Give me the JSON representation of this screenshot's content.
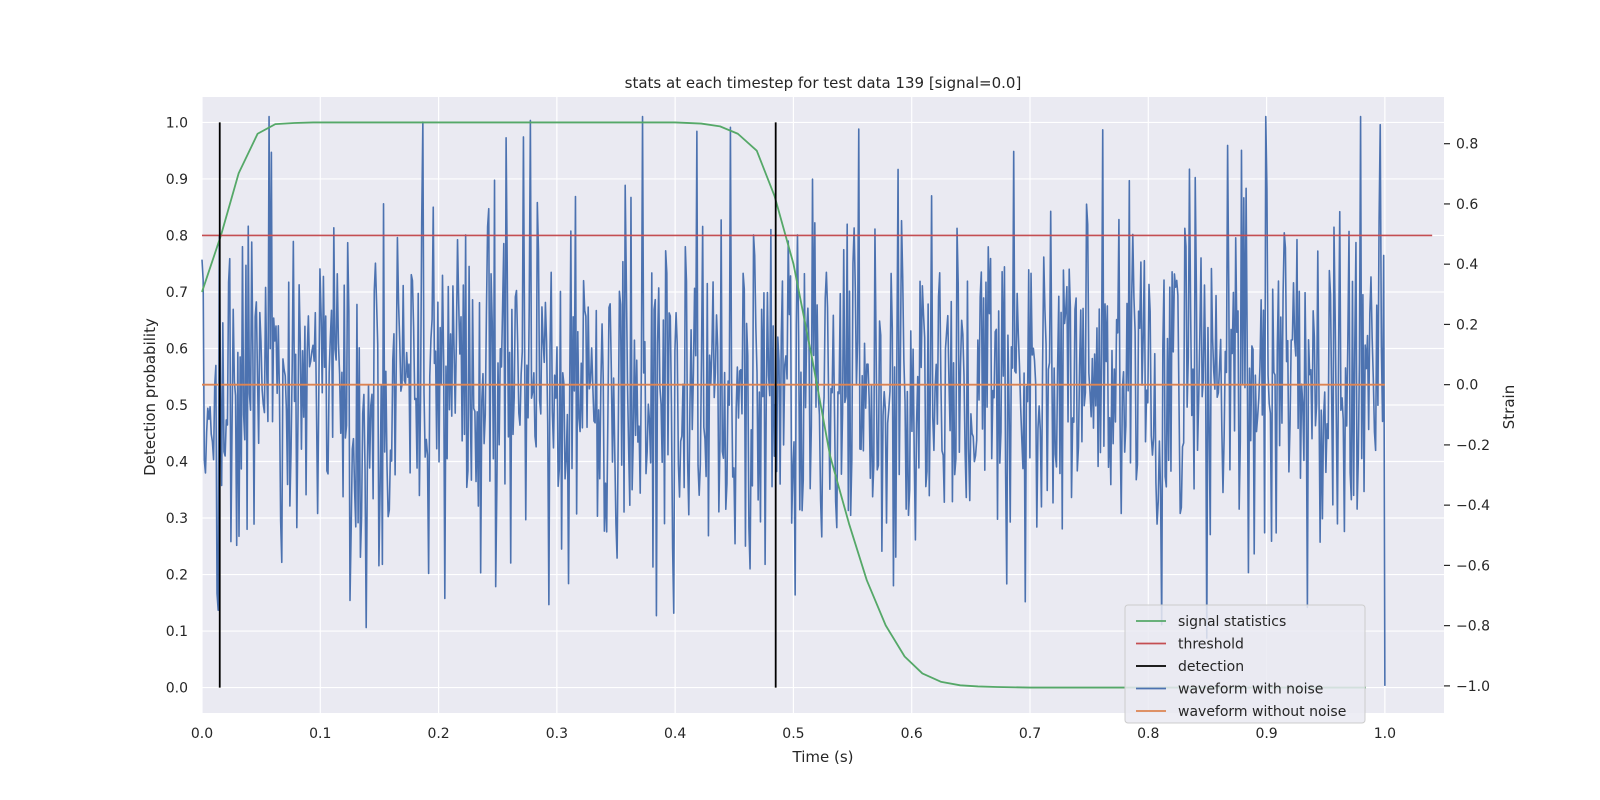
{
  "chart_data": {
    "type": "line",
    "title": "stats at each timestep for test data 139 [signal=0.0]",
    "xlabel": "Time (s)",
    "ylabel_left": "Detection probability",
    "ylabel_right": "Strain",
    "xlim": [
      0.0,
      1.05
    ],
    "ylim_left": [
      -0.045,
      1.045
    ],
    "ylim_right": [
      -1.09,
      0.955
    ],
    "x_ticks": [
      "0.0",
      "0.1",
      "0.2",
      "0.3",
      "0.4",
      "0.5",
      "0.6",
      "0.7",
      "0.8",
      "0.9",
      "1.0"
    ],
    "y_left_ticks": [
      "0.0",
      "0.1",
      "0.2",
      "0.3",
      "0.4",
      "0.5",
      "0.6",
      "0.7",
      "0.8",
      "0.9",
      "1.0"
    ],
    "y_right_ticks": [
      "−1.0",
      "−0.8",
      "−0.6",
      "−0.4",
      "−0.2",
      "0.0",
      "0.2",
      "0.4",
      "0.6",
      "0.8"
    ],
    "grid": true,
    "legend_position": "lower-right",
    "colors": {
      "background": "#eaeaf2",
      "grid": "#ffffff",
      "signal_statistics": "#55a868",
      "threshold": "#c44e52",
      "detection": "#000000",
      "waveform_with_noise": "#4c72b0",
      "waveform_without_noise": "#dd8452"
    },
    "legend": [
      "signal statistics",
      "threshold",
      "detection",
      "waveform with noise",
      "waveform without noise"
    ],
    "series": [
      {
        "name": "signal statistics",
        "axis": "left",
        "x": [
          0.0,
          0.016,
          0.031,
          0.047,
          0.062,
          0.078,
          0.094,
          0.109,
          0.125,
          0.2,
          0.3,
          0.4,
          0.422,
          0.438,
          0.453,
          0.469,
          0.484,
          0.5,
          0.516,
          0.531,
          0.547,
          0.562,
          0.578,
          0.594,
          0.609,
          0.625,
          0.641,
          0.656,
          0.672,
          0.7,
          0.8,
          0.9,
          0.984
        ],
        "y": [
          0.7,
          0.8,
          0.91,
          0.98,
          0.997,
          0.999,
          1.0,
          1.0,
          1.0,
          1.0,
          1.0,
          1.0,
          0.998,
          0.993,
          0.98,
          0.95,
          0.87,
          0.75,
          0.58,
          0.41,
          0.29,
          0.19,
          0.11,
          0.055,
          0.025,
          0.01,
          0.004,
          0.002,
          0.001,
          0.0,
          0.0,
          0.0,
          0.0
        ]
      },
      {
        "name": "threshold",
        "axis": "left",
        "x": [
          0.0,
          1.04
        ],
        "y": [
          0.8,
          0.8
        ]
      },
      {
        "name": "detection",
        "axis": "left",
        "x_events": [
          0.015,
          0.485
        ],
        "y_range": [
          0.0,
          1.0
        ]
      },
      {
        "name": "waveform with noise",
        "axis": "right",
        "x_range": [
          0.0,
          1.0
        ],
        "n_samples": 1024,
        "y_min": -1.0,
        "y_max": 0.89
      },
      {
        "name": "waveform without noise",
        "axis": "right",
        "x": [
          0.0,
          1.0
        ],
        "y": [
          0.0,
          0.0
        ]
      }
    ]
  }
}
